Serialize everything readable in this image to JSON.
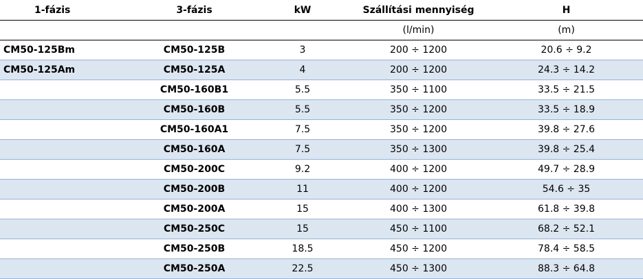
{
  "table": {
    "columns": [
      "1-fázis",
      "3-fázis",
      "kW",
      "Szállítási mennyiség",
      "H"
    ],
    "units": {
      "flow": "(l/min)",
      "h": "(m)"
    },
    "rows": [
      {
        "single_phase": "CM50-125Bm",
        "three_phase": "CM50-125B",
        "kw": "3",
        "flow": "200 ÷ 1200",
        "h": "20.6 ÷ 9.2"
      },
      {
        "single_phase": "CM50-125Am",
        "three_phase": "CM50-125A",
        "kw": "4",
        "flow": "200 ÷ 1200",
        "h": "24.3 ÷ 14.2"
      },
      {
        "three_phase": "CM50-160B1",
        "kw": "5.5",
        "flow": "350 ÷ 1100",
        "h": "33.5 ÷ 21.5"
      },
      {
        "three_phase": "CM50-160B",
        "kw": "5.5",
        "flow": "350 ÷ 1200",
        "h": "33.5 ÷ 18.9"
      },
      {
        "three_phase": "CM50-160A1",
        "kw": "7.5",
        "flow": "350 ÷ 1200",
        "h": "39.8 ÷ 27.6"
      },
      {
        "three_phase": "CM50-160A",
        "kw": "7.5",
        "flow": "350 ÷ 1300",
        "h": "39.8 ÷ 25.4"
      },
      {
        "three_phase": "CM50-200C",
        "kw": "9.2",
        "flow": "400 ÷ 1200",
        "h": "49.7 ÷ 28.9"
      },
      {
        "three_phase": "CM50-200B",
        "kw": "11",
        "flow": "400 ÷ 1200",
        "h": "54.6 ÷ 35"
      },
      {
        "three_phase": "CM50-200A",
        "kw": "15",
        "flow": "400 ÷ 1300",
        "h": "61.8 ÷ 39.8"
      },
      {
        "three_phase": "CM50-250C",
        "kw": "15",
        "flow": "450 ÷ 1100",
        "h": "68.2 ÷ 52.1"
      },
      {
        "three_phase": "CM50-250B",
        "kw": "18.5",
        "flow": "450 ÷ 1200",
        "h": "78.4 ÷ 58.5"
      },
      {
        "three_phase": "CM50-250A",
        "kw": "22.5",
        "flow": "450 ÷ 1300",
        "h": "88.3 ÷ 64.8"
      }
    ]
  }
}
